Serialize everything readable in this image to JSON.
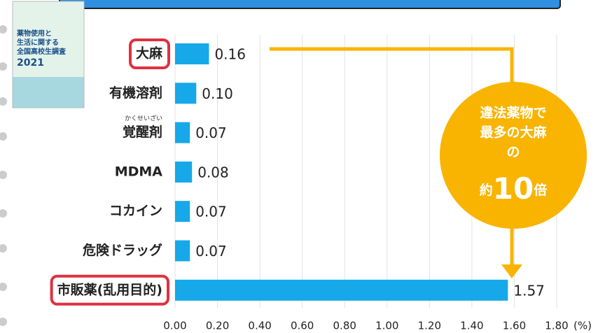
{
  "chart_data": {
    "type": "hbar",
    "categories": [
      "大麻",
      "有機溶剤",
      "覚醒剤",
      "MDMA",
      "コカイン",
      "危険ドラッグ",
      "市販薬(乱用目的)"
    ],
    "values": [
      0.16,
      0.1,
      0.07,
      0.08,
      0.07,
      0.07,
      1.57
    ],
    "value_labels": [
      "0.16",
      "0.10",
      "0.07",
      "0.08",
      "0.07",
      "0.07",
      "1.57"
    ],
    "color": "#16a8e8",
    "xlim": [
      0,
      1.8
    ],
    "xticks": [
      {
        "value": 0,
        "label": "0.00"
      },
      {
        "value": 0.2,
        "label": "0.20"
      },
      {
        "value": 0.4,
        "label": "0.40"
      },
      {
        "value": 0.6,
        "label": "0.60"
      },
      {
        "value": 0.8,
        "label": "0.80"
      },
      {
        "value": 1,
        "label": "1.00"
      },
      {
        "value": 1.2,
        "label": "1.20"
      },
      {
        "value": 1.4,
        "label": "1.40"
      },
      {
        "value": 1.6,
        "label": "1.60"
      },
      {
        "value": 1.8,
        "label": "1.80"
      }
    ],
    "xlabel": "(%)",
    "grid": true,
    "highlight": [
      0,
      6
    ],
    "highlight_color": "#e03040",
    "furigana": "かくせいざい",
    "annotation": {
      "lines": [
        "違法薬物で",
        "最多の大麻",
        "の"
      ],
      "last": [
        "約",
        "10",
        "倍"
      ],
      "color": "#f8b400"
    }
  },
  "cover": {
    "lines": [
      "薬物使用と",
      "生活に関する",
      "全国高校生調査"
    ],
    "year": "2021"
  }
}
